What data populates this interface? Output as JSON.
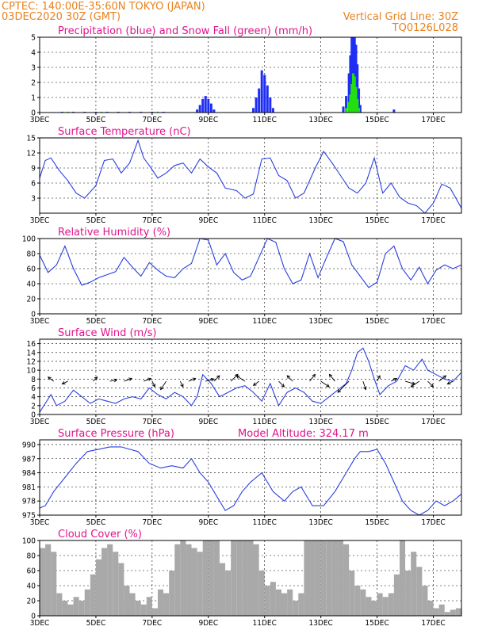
{
  "header": {
    "line1": "CPTEC:   140:00E-35:60N   TOKYO (JAPAN)",
    "line2_left": "03DEC2020 30Z (GMT)",
    "line2_right": "Vertical Grid Line: 30Z",
    "line3_right": "TQ0126L028"
  },
  "x_axis": {
    "start_label": "3DEC",
    "tick_labels": [
      "3DEC",
      "5DEC",
      "7DEC",
      "9DEC",
      "11DEC",
      "13DEC",
      "15DEC",
      "17DEC"
    ],
    "tick_days": [
      0,
      2,
      4,
      6,
      8,
      10,
      12,
      14
    ],
    "domain_days": [
      0,
      15
    ]
  },
  "colors": {
    "header": "#e8821e",
    "panel_title": "#e0148c",
    "line": "#2a3fe0",
    "rain": "#1f2ef5",
    "snow": "#22e010",
    "cloud": "#a9a9a9",
    "arrow": "#000000"
  },
  "chart_data": [
    {
      "type": "bar",
      "title": "Precipitation (blue) and Snow Fall (green) (mm/h)",
      "ylim": [
        0,
        5
      ],
      "yticks": [
        0,
        1,
        2,
        3,
        4,
        5
      ],
      "series": [
        {
          "name": "Precipitation",
          "x": [
            0.8,
            1.2,
            1.6,
            2.0,
            2.4,
            2.8,
            3.2,
            3.6,
            4.0,
            4.4,
            5.6,
            5.7,
            5.8,
            5.9,
            6.0,
            6.1,
            6.2,
            7.6,
            7.7,
            7.8,
            7.9,
            8.0,
            8.1,
            8.2,
            8.3,
            10.8,
            10.9,
            11.0,
            11.05,
            11.1,
            11.15,
            11.2,
            11.25,
            11.3,
            11.35,
            11.4,
            12.6
          ],
          "values": [
            0.05,
            0.05,
            0.05,
            0.05,
            0.05,
            0.05,
            0.05,
            0.05,
            0.05,
            0.05,
            0.2,
            0.5,
            0.9,
            1.1,
            0.9,
            0.6,
            0.2,
            0.3,
            1.0,
            1.6,
            2.8,
            2.5,
            1.8,
            1.0,
            0.3,
            0.4,
            1.1,
            2.6,
            3.8,
            5.0,
            5.0,
            5.0,
            4.5,
            3.2,
            1.6,
            0.5,
            0.2
          ]
        },
        {
          "name": "Snow Fall",
          "x": [
            1.0,
            2.2,
            4.2,
            10.9,
            11.0,
            11.05,
            11.1,
            11.15,
            11.2,
            11.25,
            11.3,
            11.35
          ],
          "values": [
            0.05,
            0.05,
            0.05,
            0.3,
            0.7,
            1.2,
            1.9,
            2.6,
            2.4,
            1.7,
            0.9,
            0.3
          ]
        }
      ]
    },
    {
      "type": "line",
      "title": "Surface Temperature (nC)",
      "ylim": [
        0,
        15
      ],
      "yticks": [
        3,
        6,
        9,
        12,
        15
      ],
      "x": [
        0,
        0.2,
        0.4,
        0.7,
        1.0,
        1.3,
        1.6,
        2.0,
        2.3,
        2.6,
        2.9,
        3.2,
        3.5,
        3.7,
        3.9,
        4.2,
        4.5,
        4.8,
        5.1,
        5.4,
        5.7,
        6.0,
        6.3,
        6.6,
        7.0,
        7.3,
        7.6,
        7.9,
        8.2,
        8.5,
        8.8,
        9.1,
        9.4,
        9.8,
        10.1,
        10.4,
        10.7,
        11.0,
        11.3,
        11.6,
        11.9,
        12.2,
        12.5,
        12.8,
        13.1,
        13.4,
        13.7,
        14.0,
        14.3,
        14.6,
        15.0
      ],
      "values": [
        7,
        10.5,
        11,
        8.5,
        6.5,
        4,
        3,
        5.5,
        10.5,
        10.8,
        8,
        10,
        14.5,
        11,
        9.5,
        7,
        8,
        9.5,
        10,
        8,
        10.8,
        9.2,
        8,
        5,
        4.5,
        3,
        3.8,
        10.8,
        11,
        7.5,
        6.5,
        3,
        4,
        9,
        12.3,
        10,
        7.5,
        5,
        4,
        6,
        11,
        4,
        6,
        3.2,
        2,
        1.5,
        0,
        2,
        5.8,
        5,
        1
      ]
    },
    {
      "type": "line",
      "title": "Relative Humidity (%)",
      "ylim": [
        0,
        100
      ],
      "yticks": [
        0,
        20,
        40,
        60,
        80,
        100
      ],
      "x": [
        0,
        0.3,
        0.6,
        0.9,
        1.2,
        1.5,
        1.8,
        2.1,
        2.4,
        2.7,
        3.0,
        3.3,
        3.6,
        3.9,
        4.2,
        4.5,
        4.8,
        5.1,
        5.4,
        5.7,
        6.0,
        6.3,
        6.6,
        6.9,
        7.2,
        7.5,
        7.8,
        8.1,
        8.4,
        8.7,
        9.0,
        9.3,
        9.6,
        9.9,
        10.2,
        10.5,
        10.8,
        11.1,
        11.4,
        11.7,
        12.0,
        12.3,
        12.6,
        12.9,
        13.2,
        13.5,
        13.8,
        14.1,
        14.4,
        14.7,
        15.0
      ],
      "values": [
        78,
        55,
        65,
        90,
        60,
        38,
        42,
        48,
        52,
        56,
        75,
        62,
        50,
        68,
        58,
        50,
        48,
        60,
        67,
        100,
        98,
        65,
        80,
        55,
        45,
        50,
        75,
        100,
        95,
        60,
        40,
        45,
        80,
        48,
        75,
        100,
        96,
        65,
        50,
        35,
        42,
        80,
        90,
        60,
        45,
        62,
        40,
        58,
        65,
        60,
        65
      ]
    },
    {
      "type": "line",
      "title": "Surface Wind (m/s)",
      "ylim": [
        0,
        17
      ],
      "yticks": [
        0,
        2,
        4,
        6,
        8,
        10,
        12,
        14,
        16
      ],
      "x": [
        0,
        0.2,
        0.4,
        0.6,
        0.9,
        1.2,
        1.5,
        1.8,
        2.1,
        2.4,
        2.7,
        3.0,
        3.3,
        3.6,
        3.9,
        4.2,
        4.5,
        4.8,
        5.1,
        5.4,
        5.6,
        5.8,
        6.1,
        6.4,
        6.7,
        7.0,
        7.3,
        7.6,
        7.9,
        8.2,
        8.5,
        8.8,
        9.1,
        9.4,
        9.7,
        10.0,
        10.3,
        10.6,
        10.9,
        11.1,
        11.3,
        11.5,
        11.7,
        11.9,
        12.1,
        12.4,
        12.7,
        13.0,
        13.3,
        13.6,
        13.8,
        14.1,
        14.4,
        14.7,
        15.0
      ],
      "values": [
        0.5,
        2.5,
        4.5,
        2,
        3,
        5.5,
        4,
        2.5,
        3.5,
        3,
        2.5,
        3.5,
        4,
        3.5,
        6,
        4.5,
        3.5,
        5,
        4,
        2,
        4,
        9,
        7,
        4,
        5,
        6,
        6.5,
        5,
        3,
        7,
        2,
        5,
        6,
        5,
        3,
        2.5,
        4,
        5.5,
        7,
        10,
        14,
        15,
        12,
        8,
        4.5,
        6.5,
        7.5,
        11,
        10,
        12.5,
        10,
        9,
        8,
        7.5,
        9.5
      ],
      "arrows": {
        "x": [
          0.5,
          1.0,
          1.9,
          2.5,
          3.0,
          3.7,
          4.0,
          4.5,
          5.0,
          5.3,
          5.9,
          6.2,
          6.8,
          7.3,
          7.8,
          8.5,
          9.0,
          9.6,
          10.0,
          10.5,
          11.0,
          11.5,
          12.0,
          12.5,
          13.0,
          13.5,
          13.8,
          14.2,
          14.7
        ],
        "u": [
          -2,
          -2,
          1.5,
          2.5,
          2.8,
          2.6,
          1,
          -2,
          1,
          2.5,
          3,
          2,
          2.5,
          -3,
          -2,
          2,
          -2,
          2,
          3,
          -2,
          -4,
          1,
          1,
          2,
          3.5,
          -3,
          2,
          2.5,
          -2
        ],
        "v": [
          1.5,
          -1,
          1.5,
          0.5,
          1,
          1,
          -2,
          -3,
          -2,
          1,
          0.8,
          2,
          2.5,
          2,
          -1.5,
          -2,
          2,
          2.5,
          -2,
          2.5,
          -4,
          -3,
          2,
          1,
          -1,
          -2,
          -2,
          2,
          -1
        ]
      }
    },
    {
      "type": "line",
      "title": "Surface Pressure (hPa)",
      "subtitle": "Model Altitude: 324.17 m",
      "ylim": [
        975,
        991
      ],
      "yticks": [
        975,
        978,
        981,
        984,
        987,
        990
      ],
      "x": [
        0,
        0.2,
        0.5,
        0.9,
        1.3,
        1.7,
        2.1,
        2.5,
        2.9,
        3.2,
        3.5,
        3.9,
        4.3,
        4.7,
        5.1,
        5.4,
        5.7,
        6.0,
        6.3,
        6.6,
        6.9,
        7.2,
        7.5,
        7.9,
        8.3,
        8.7,
        9.0,
        9.3,
        9.7,
        10.1,
        10.5,
        10.9,
        11.2,
        11.4,
        11.7,
        12.0,
        12.3,
        12.6,
        12.9,
        13.2,
        13.5,
        13.8,
        14.1,
        14.4,
        14.7,
        15.0
      ],
      "values": [
        976.5,
        977,
        980,
        983,
        986,
        988.5,
        989,
        989.5,
        989.5,
        989,
        988.5,
        986,
        985,
        985.5,
        985,
        987,
        984,
        982,
        979,
        976,
        977,
        980,
        982,
        984,
        980,
        978,
        980,
        981,
        977,
        977,
        980,
        984,
        987,
        988.5,
        988.5,
        989,
        986,
        982,
        978,
        976,
        974,
        976,
        978,
        977,
        978,
        979.5
      ]
    },
    {
      "type": "bar",
      "title": "Cloud Cover (%)",
      "ylim": [
        0,
        100
      ],
      "yticks": [
        0,
        20,
        40,
        60,
        80,
        100
      ],
      "x": [
        0.1,
        0.3,
        0.5,
        0.7,
        0.9,
        1.1,
        1.3,
        1.5,
        1.7,
        1.9,
        2.1,
        2.3,
        2.5,
        2.7,
        2.9,
        3.1,
        3.3,
        3.5,
        3.7,
        3.9,
        4.1,
        4.3,
        4.5,
        4.7,
        4.9,
        5.1,
        5.3,
        5.5,
        5.7,
        5.9,
        6.1,
        6.3,
        6.5,
        6.7,
        6.9,
        7.1,
        7.3,
        7.5,
        7.7,
        7.9,
        8.1,
        8.3,
        8.5,
        8.7,
        8.9,
        9.1,
        9.3,
        9.5,
        9.7,
        9.9,
        10.1,
        10.3,
        10.5,
        10.7,
        10.9,
        11.1,
        11.3,
        11.5,
        11.7,
        11.9,
        12.1,
        12.3,
        12.5,
        12.7,
        12.9,
        13.1,
        13.3,
        13.5,
        13.7,
        13.9,
        14.1,
        14.3,
        14.5,
        14.7,
        14.9
      ],
      "values": [
        90,
        95,
        85,
        30,
        20,
        15,
        25,
        20,
        35,
        55,
        75,
        90,
        95,
        85,
        70,
        40,
        30,
        20,
        15,
        25,
        10,
        35,
        30,
        60,
        95,
        100,
        95,
        90,
        85,
        100,
        100,
        100,
        70,
        60,
        100,
        100,
        100,
        100,
        95,
        60,
        40,
        45,
        35,
        30,
        35,
        20,
        30,
        100,
        100,
        100,
        100,
        100,
        100,
        100,
        95,
        60,
        40,
        35,
        25,
        20,
        30,
        25,
        30,
        55,
        100,
        60,
        85,
        65,
        40,
        20,
        10,
        15,
        5,
        8,
        10
      ]
    }
  ]
}
